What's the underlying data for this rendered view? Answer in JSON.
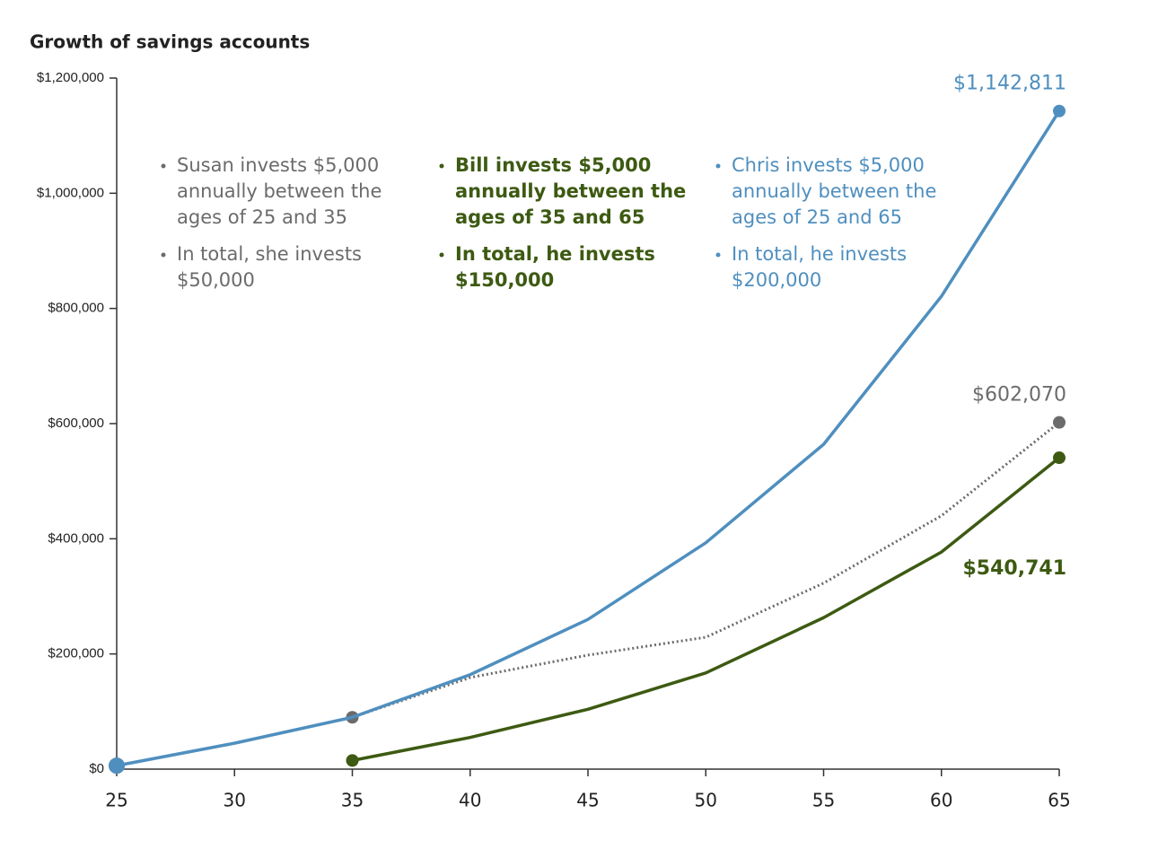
{
  "chart_data": {
    "type": "line",
    "title": "Growth of savings accounts",
    "x": [
      25,
      30,
      35,
      40,
      45,
      50,
      55,
      60,
      65
    ],
    "xlim": [
      25,
      65
    ],
    "xticks": [
      25,
      30,
      35,
      40,
      45,
      50,
      55,
      60,
      65
    ],
    "ylim": [
      0,
      1200000
    ],
    "yticks": [
      {
        "value": 0,
        "label": "$0"
      },
      {
        "value": 200000,
        "label": "$200,000"
      },
      {
        "value": 400000,
        "label": "$400,000"
      },
      {
        "value": 600000,
        "label": "$600,000"
      },
      {
        "value": 800000,
        "label": "$800,000"
      },
      {
        "value": 1000000,
        "label": "$1,000,000"
      },
      {
        "value": 1200000,
        "label": "$1,200,000"
      }
    ],
    "series": [
      {
        "color": "#6b6b6b",
        "line_style": "dotted",
        "markers": [
          25,
          35,
          65
        ],
        "label_position": "above",
        "values": [
          6000,
          45000,
          90000,
          159000,
          198000,
          229000,
          323000,
          440000,
          602070
        ],
        "value_labels": [
          null,
          null,
          null,
          null,
          null,
          null,
          null,
          null,
          "$602,070"
        ]
      },
      {
        "color": "#3d5a12",
        "line_style": "solid",
        "markers": [
          35,
          65
        ],
        "label_position": "below",
        "values": [
          null,
          null,
          15000,
          55000,
          104000,
          167000,
          263000,
          377000,
          540741
        ],
        "value_labels": [
          null,
          null,
          null,
          null,
          null,
          null,
          null,
          null,
          "$540,741"
        ]
      },
      {
        "color": "#4f8fbf",
        "line_style": "solid",
        "markers": [
          25,
          65
        ],
        "label_position": "above",
        "values": [
          6000,
          45000,
          90000,
          164000,
          260000,
          393000,
          564000,
          821000,
          1142811
        ],
        "value_labels": [
          null,
          null,
          null,
          null,
          null,
          null,
          null,
          null,
          "$1,142,811"
        ]
      }
    ],
    "annotations": [
      {
        "color": "#6b6b6b",
        "items": [
          [
            "Susan invests $5,000",
            "annually between the",
            "ages of 25 and 35"
          ],
          [
            "In total, she invests",
            "$50,000"
          ]
        ]
      },
      {
        "color": "#3d5a12",
        "items": [
          [
            "Bill invests $5,000",
            "annually between the",
            "ages of 35 and 65"
          ],
          [
            "In total, he invests",
            "$150,000"
          ]
        ]
      },
      {
        "color": "#4f8fbf",
        "items": [
          [
            "Chris invests $5,000",
            "annually between the",
            "ages of 25 and 65"
          ],
          [
            "In total, he invests",
            "$200,000"
          ]
        ]
      }
    ]
  }
}
